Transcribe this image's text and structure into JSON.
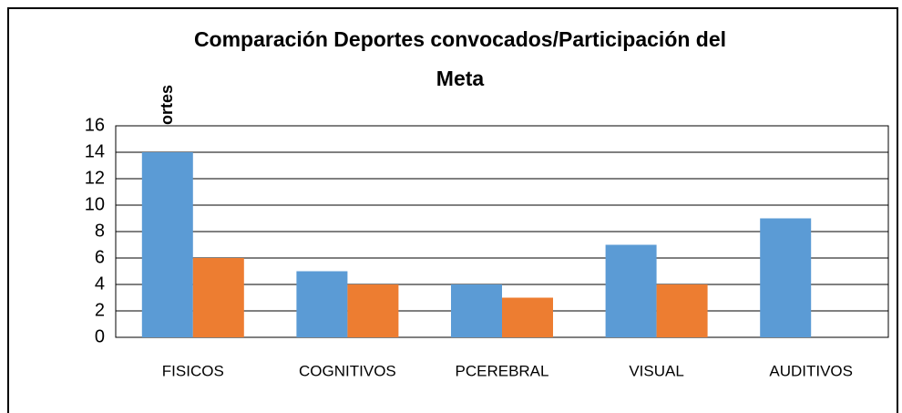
{
  "chart_data": {
    "type": "bar",
    "title": [
      "Comparación Deportes convocados/Participación del",
      "Meta"
    ],
    "y_label": "ortes",
    "categories": [
      "FISICOS",
      "COGNITIVOS",
      "PCEREBRAL",
      "VISUAL",
      "AUDITIVOS"
    ],
    "series": [
      {
        "color": "#5b9bd5",
        "values": [
          14,
          5,
          4,
          7,
          9
        ]
      },
      {
        "color": "#ed7d31",
        "values": [
          6,
          4,
          3,
          4,
          0
        ]
      }
    ],
    "ylim": [
      0,
      16
    ],
    "yticks": [
      0,
      2,
      4,
      6,
      8,
      10,
      12,
      14,
      16
    ],
    "grid": true
  }
}
